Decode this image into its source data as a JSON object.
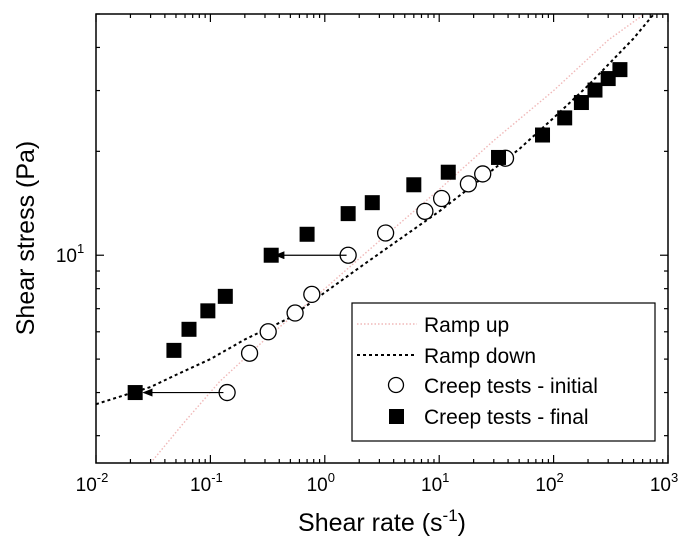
{
  "chart_data": {
    "type": "scatter",
    "xlabel": "Shear rate (s",
    "xlabel_sup": "-1",
    "xlabel_tail": ")",
    "ylabel": "Shear stress (Pa)",
    "x_scale": "log",
    "y_scale": "log",
    "xlim": [
      0.01,
      1000
    ],
    "ylim": [
      2.5,
      50
    ],
    "x_ticks": [
      {
        "value": 0.01,
        "base": "10",
        "exp": "-2"
      },
      {
        "value": 0.1,
        "base": "10",
        "exp": "-1"
      },
      {
        "value": 1,
        "base": "10",
        "exp": "0"
      },
      {
        "value": 10,
        "base": "10",
        "exp": "1"
      },
      {
        "value": 100,
        "base": "10",
        "exp": "2"
      },
      {
        "value": 1000,
        "base": "10",
        "exp": "3"
      }
    ],
    "y_ticks": [
      {
        "value": 10,
        "base": "10",
        "exp": "1"
      }
    ],
    "legend_position": "bottom-right",
    "grid": false,
    "series": [
      {
        "name": "Ramp up",
        "kind": "line",
        "style": "dotted-light",
        "color": "#f0b8b8",
        "points": [
          [
            0.03,
            2.5
          ],
          [
            0.06,
            3.3
          ],
          [
            0.12,
            4.3
          ],
          [
            0.3,
            5.7
          ],
          [
            1,
            8.0
          ],
          [
            3,
            11.0
          ],
          [
            10,
            15.5
          ],
          [
            30,
            21.5
          ],
          [
            100,
            30.0
          ],
          [
            300,
            42.0
          ],
          [
            1000,
            56
          ]
        ]
      },
      {
        "name": "Ramp down",
        "kind": "line",
        "style": "dashed",
        "color": "#000000",
        "points": [
          [
            0.01,
            3.7
          ],
          [
            0.02,
            3.98
          ],
          [
            0.03,
            4.15
          ],
          [
            0.05,
            4.5
          ],
          [
            0.1,
            5.0
          ],
          [
            0.2,
            5.7
          ],
          [
            0.5,
            6.6
          ],
          [
            1,
            7.8
          ],
          [
            2,
            9.2
          ],
          [
            5,
            11.4
          ],
          [
            10,
            13.4
          ],
          [
            20,
            16.0
          ],
          [
            50,
            20.3
          ],
          [
            100,
            25.0
          ],
          [
            200,
            31.0
          ],
          [
            500,
            42.5
          ],
          [
            1000,
            56
          ]
        ]
      },
      {
        "name": "Creep tests - initial",
        "kind": "scatter",
        "marker": "open-circle",
        "color": "#000000",
        "points": [
          [
            0.14,
            4.0
          ],
          [
            0.22,
            5.2
          ],
          [
            0.32,
            6.0
          ],
          [
            0.55,
            6.8
          ],
          [
            0.77,
            7.7
          ],
          [
            1.6,
            10.0
          ],
          [
            3.4,
            11.6
          ],
          [
            7.5,
            13.4
          ],
          [
            10.5,
            14.6
          ],
          [
            18,
            16.1
          ],
          [
            24,
            17.2
          ],
          [
            38,
            19.1
          ]
        ]
      },
      {
        "name": "Creep tests - final",
        "kind": "scatter",
        "marker": "filled-square",
        "color": "#000000",
        "points": [
          [
            0.022,
            4.0
          ],
          [
            0.048,
            5.3
          ],
          [
            0.065,
            6.1
          ],
          [
            0.095,
            6.9
          ],
          [
            0.135,
            7.6
          ],
          [
            0.34,
            10.0
          ],
          [
            0.7,
            11.5
          ],
          [
            1.6,
            13.2
          ],
          [
            2.6,
            14.2
          ],
          [
            6,
            16.0
          ],
          [
            12,
            17.4
          ],
          [
            33,
            19.2
          ],
          [
            80,
            22.3
          ],
          [
            125,
            25.0
          ],
          [
            175,
            27.7
          ],
          [
            230,
            30.1
          ],
          [
            300,
            32.5
          ],
          [
            380,
            34.5
          ]
        ]
      }
    ],
    "annotations": [
      {
        "type": "arrow",
        "from": [
          1.55,
          10.0
        ],
        "to": [
          0.37,
          10.0
        ]
      },
      {
        "type": "arrow",
        "from": [
          0.13,
          4.0
        ],
        "to": [
          0.026,
          4.0
        ]
      }
    ]
  }
}
